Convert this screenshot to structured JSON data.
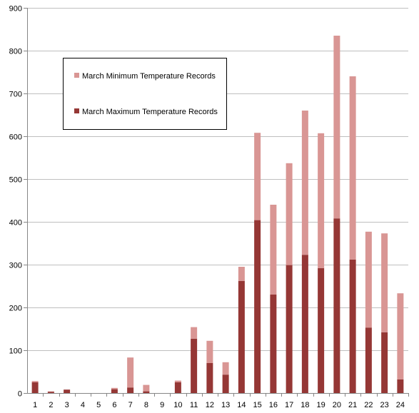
{
  "colors": {
    "max_series": "#953735",
    "min_series": "#d99694",
    "grid": "#bfbfbf",
    "axis": "#868686"
  },
  "chart_data": {
    "type": "bar",
    "stacked": true,
    "categories": [
      "1",
      "2",
      "3",
      "4",
      "5",
      "6",
      "7",
      "8",
      "9",
      "10",
      "11",
      "12",
      "13",
      "14",
      "15",
      "16",
      "17",
      "18",
      "19",
      "20",
      "21",
      "22",
      "23",
      "24"
    ],
    "series": [
      {
        "name": "March Maximum Temperature Records",
        "values": [
          25,
          3,
          8,
          0,
          0,
          9,
          13,
          4,
          0,
          25,
          127,
          70,
          43,
          262,
          404,
          230,
          299,
          323,
          292,
          408,
          312,
          153,
          142,
          32
        ]
      },
      {
        "name": "March Minimum Temperature Records",
        "values": [
          3,
          1,
          0,
          0,
          0,
          3,
          70,
          15,
          0,
          4,
          27,
          52,
          29,
          33,
          204,
          210,
          238,
          337,
          315,
          427,
          428,
          224,
          231,
          201
        ]
      }
    ],
    "ylim": [
      0,
      900
    ],
    "yticks": [
      0,
      100,
      200,
      300,
      400,
      500,
      600,
      700,
      800,
      900
    ],
    "grid": true,
    "legend_order": [
      "March Minimum Temperature Records",
      "March Maximum Temperature Records"
    ],
    "legend_position": "top-left"
  }
}
